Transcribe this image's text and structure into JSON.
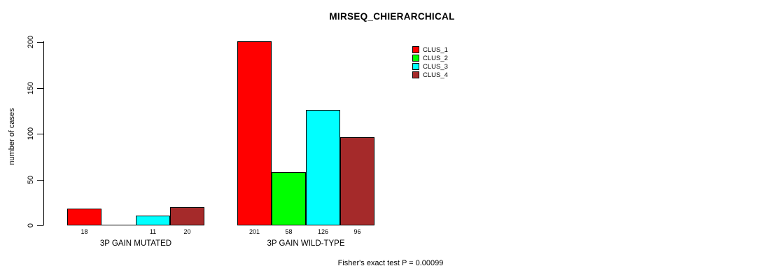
{
  "chart_data": {
    "type": "bar",
    "title": "MIRSEQ_CHIERARCHICAL",
    "ylabel": "number of cases",
    "ylim": [
      0,
      200
    ],
    "yticks": [
      0,
      50,
      100,
      150,
      200
    ],
    "grid": false,
    "legend_position": "top-right",
    "categories": [
      "3P GAIN MUTATED",
      "3P GAIN WILD-TYPE"
    ],
    "series": [
      {
        "name": "CLUS_1",
        "color": "#ff0000",
        "values": [
          18,
          201
        ]
      },
      {
        "name": "CLUS_2",
        "color": "#00ff00",
        "values": [
          0,
          58
        ]
      },
      {
        "name": "CLUS_3",
        "color": "#00ffff",
        "values": [
          11,
          126
        ]
      },
      {
        "name": "CLUS_4",
        "color": "#a52a2a",
        "values": [
          20,
          96
        ]
      }
    ],
    "bar_labels": [
      [
        "18",
        "",
        "11",
        "20"
      ],
      [
        "201",
        "58",
        "126",
        "96"
      ]
    ],
    "footer": "Fisher's exact test P = 0.00099"
  }
}
